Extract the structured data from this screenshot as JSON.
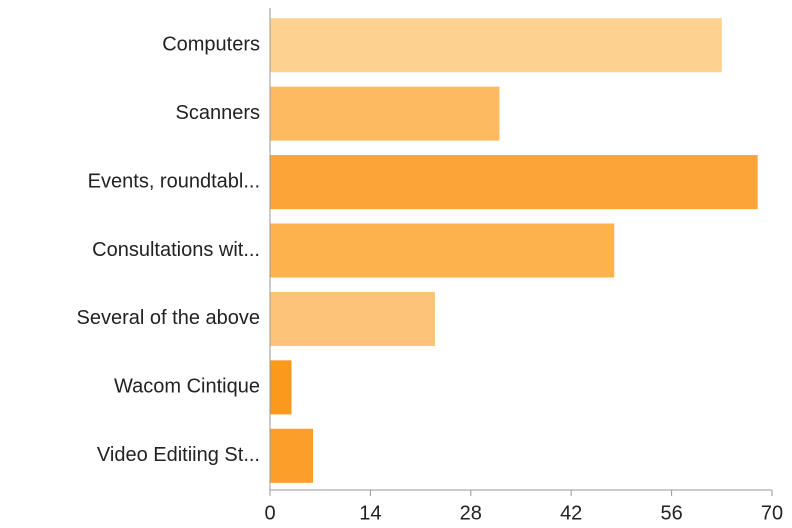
{
  "chart_data": {
    "type": "bar",
    "orientation": "horizontal",
    "categories": [
      "Computers",
      "Scanners",
      "Events, roundtabl...",
      "Consultations wit...",
      "Several of the above",
      "Wacom Cintique",
      "Video Editiing St..."
    ],
    "values": [
      63,
      32,
      68,
      48,
      23,
      3,
      6
    ],
    "colors": [
      "#fdd18f",
      "#fdba61",
      "#fca437",
      "#fdb24d",
      "#fdc479",
      "#fb991d",
      "#fc9f2a"
    ],
    "xlim": [
      0,
      70
    ],
    "xticks": [
      0,
      14,
      28,
      42,
      56,
      70
    ],
    "grid": false
  }
}
